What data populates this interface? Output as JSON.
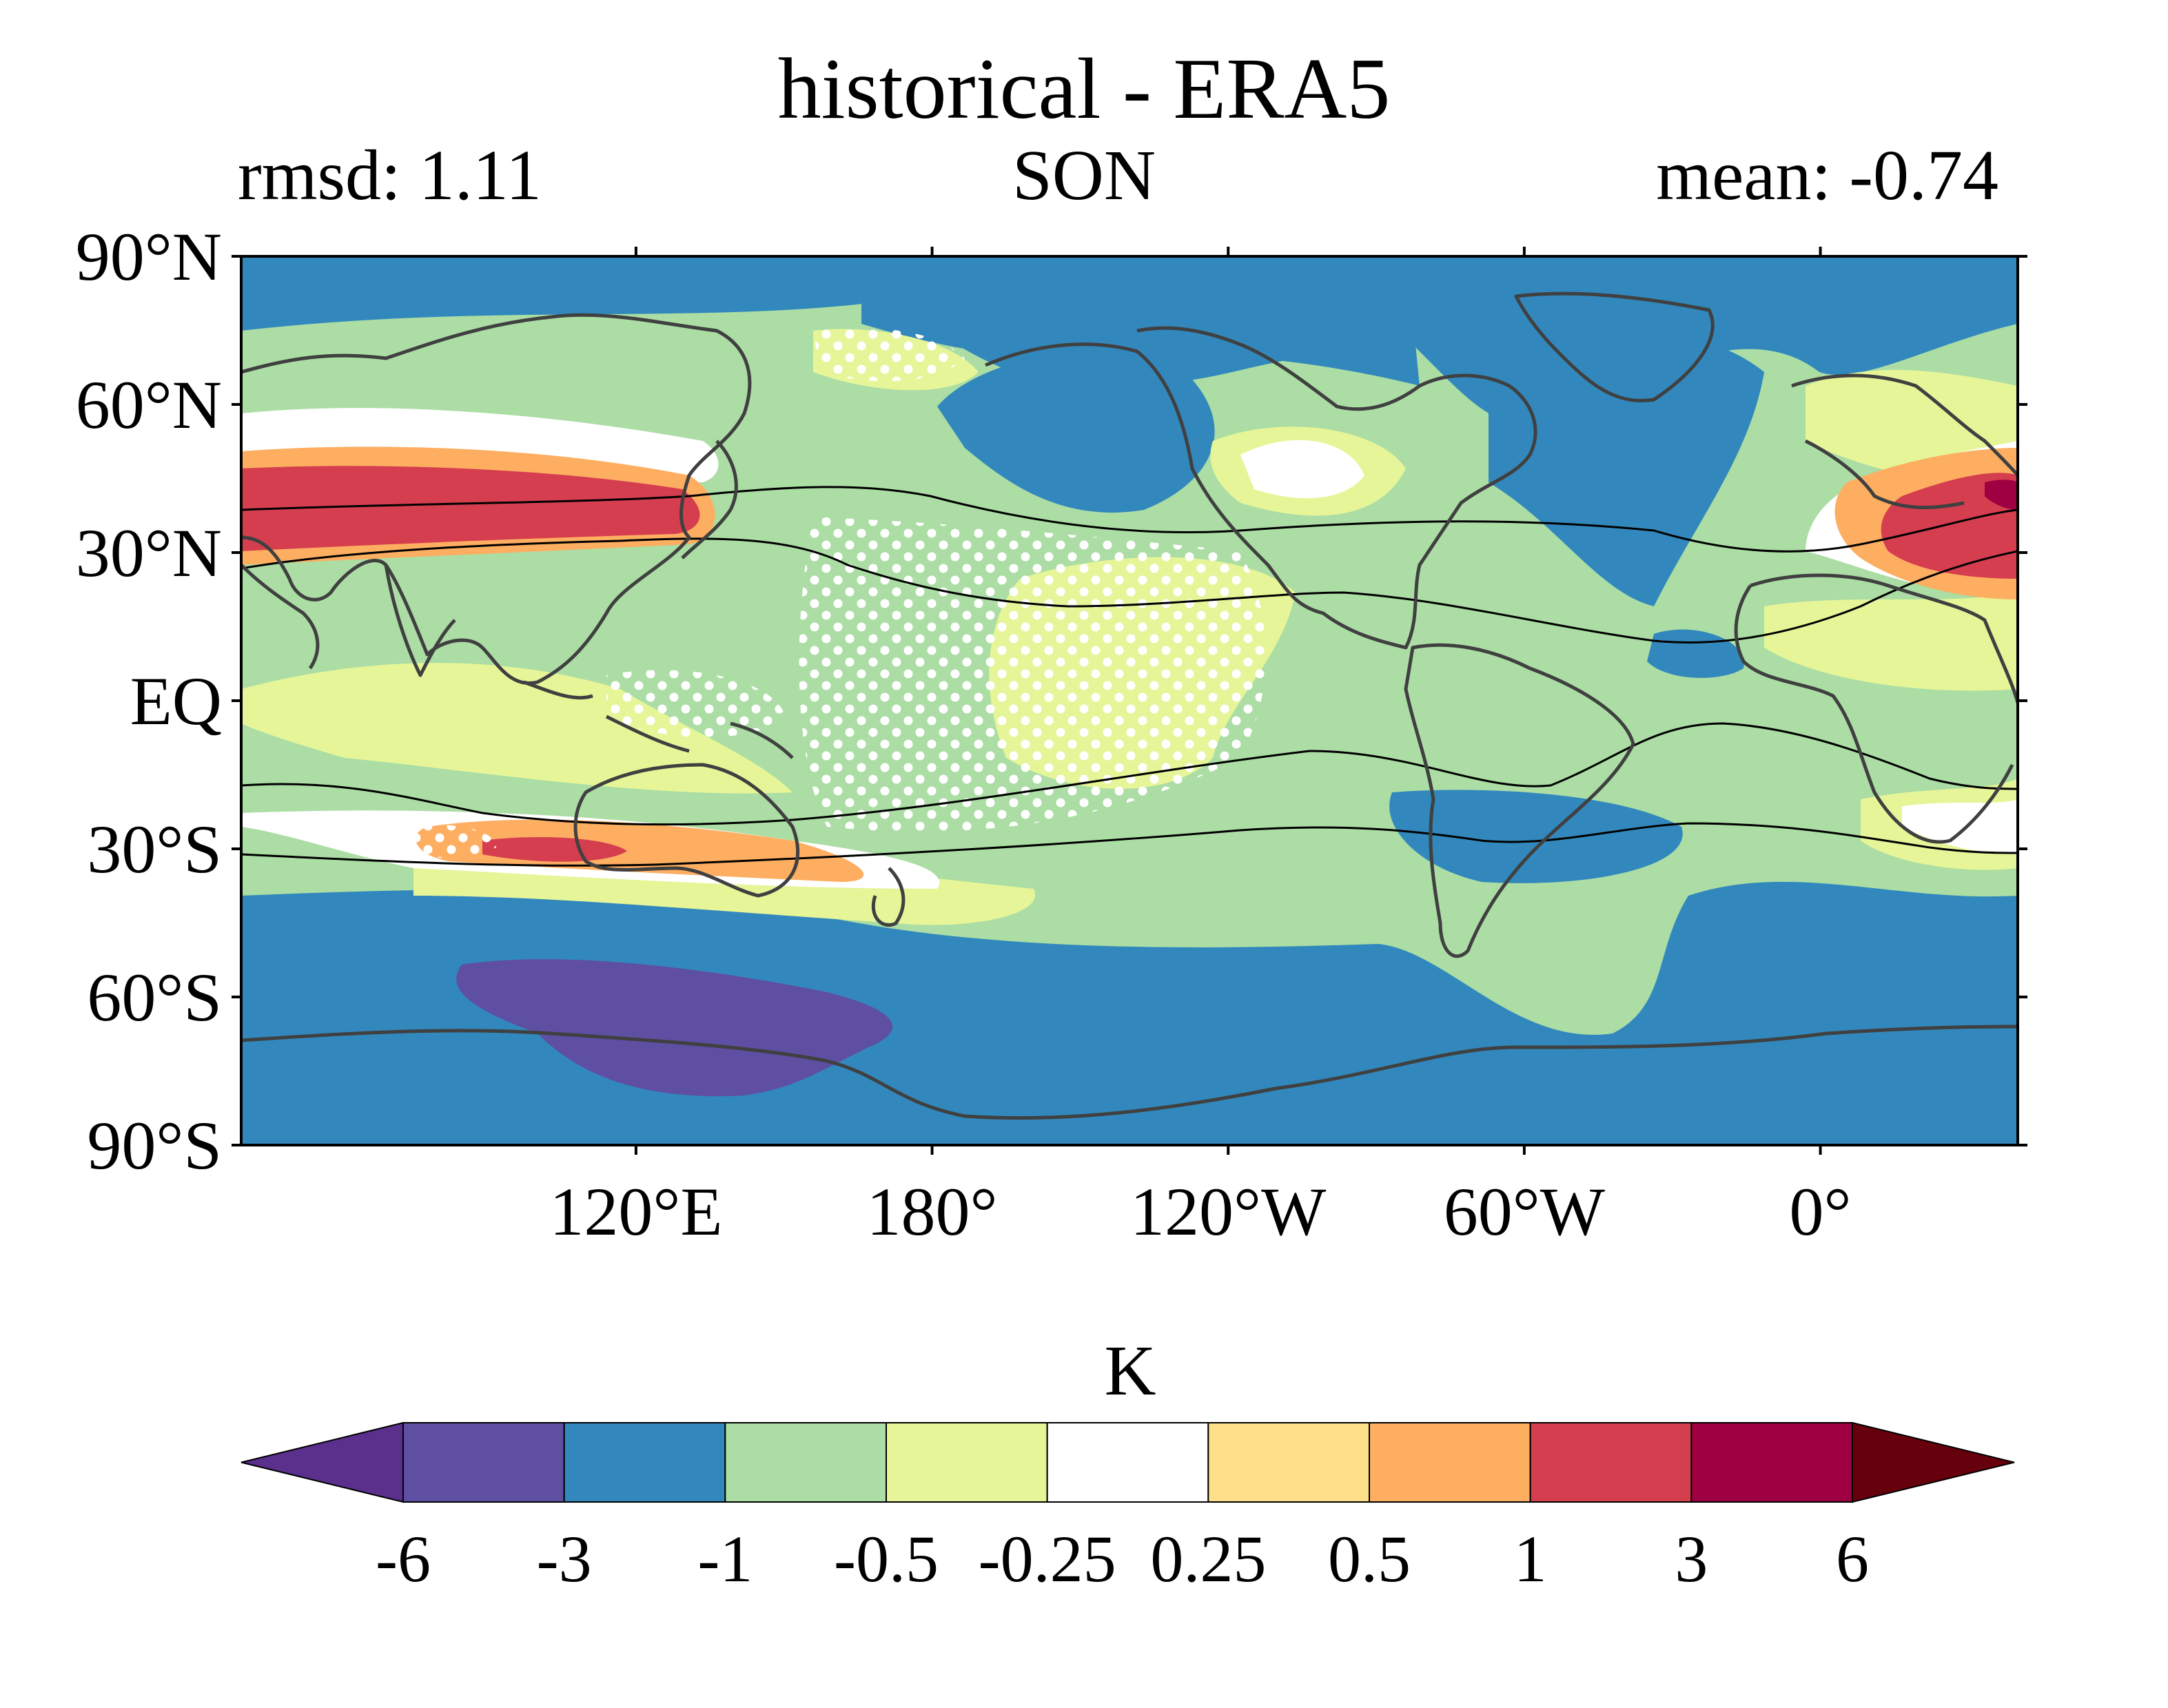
{
  "map": {
    "title": "historical - ERA5",
    "stat_left": "rmsd: 1.11",
    "season": "SON",
    "stat_right": "mean: -0.74",
    "lat_ticks": [
      "90°N",
      "60°N",
      "30°N",
      "EQ",
      "30°S",
      "60°S",
      "90°S"
    ],
    "lon_ticks": [
      "120°E",
      "180°",
      "120°W",
      "60°W",
      "0°"
    ],
    "lat_values": [
      90,
      60,
      30,
      0,
      -30,
      -60,
      -90
    ],
    "lon_values": [
      120,
      180,
      240,
      300,
      360
    ],
    "lon_range": [
      40,
      400
    ],
    "lat_range": [
      -90,
      90
    ],
    "ocean_base_color": "#3288bd"
  },
  "colorbar": {
    "unit": "K",
    "levels": [
      "-6",
      "-3",
      "-1",
      "-0.5",
      "-0.25",
      "0.25",
      "0.5",
      "1",
      "3",
      "6"
    ],
    "colors": [
      "#5e4fa2",
      "#3288bd",
      "#abdda4",
      "#e6f598",
      "#ffffff",
      "#fee08b",
      "#fdae61",
      "#d53e4f",
      "#9e0142"
    ],
    "under_color": "#5b2f8c",
    "over_color": "#67000d",
    "extend": "both"
  }
}
